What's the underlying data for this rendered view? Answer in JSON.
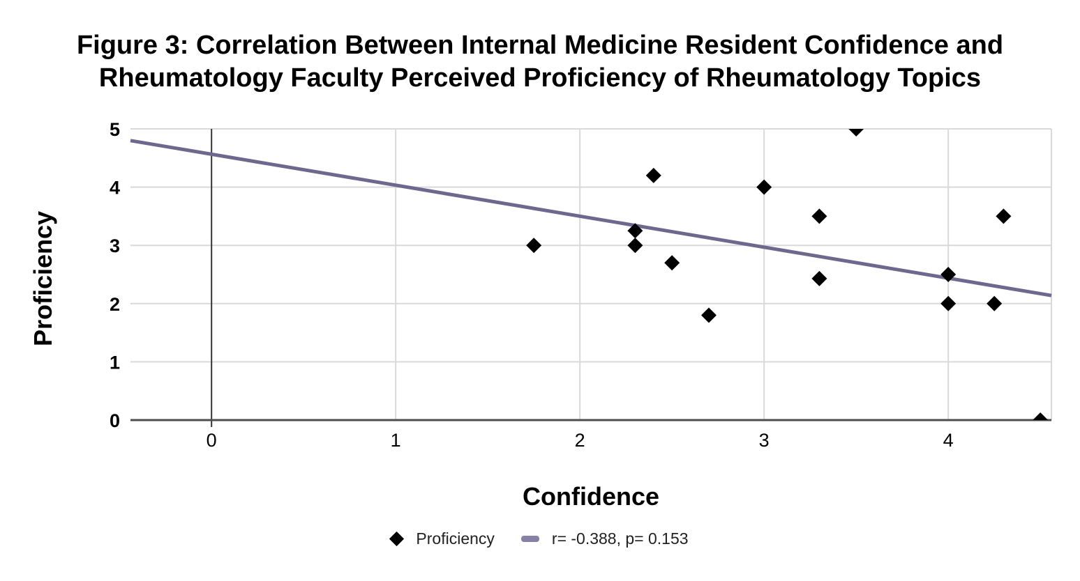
{
  "chart_data": {
    "type": "scatter",
    "title": "Figure 3: Correlation Between Internal Medicine Resident Confidence and Rheumatology Faculty Perceived Proficiency of Rheumatology Topics",
    "title_lines": [
      "Figure 3: Correlation Between Internal Medicine Resident Confidence and",
      "Rheumatology Faculty Perceived Proficiency of Rheumatology Topics"
    ],
    "xlabel": "Confidence",
    "ylabel": "Proficiency",
    "xlim": [
      -0.44,
      4.56
    ],
    "ylim": [
      0,
      5
    ],
    "x_ticks": [
      0,
      1,
      2,
      3,
      4
    ],
    "y_ticks": [
      0,
      1,
      2,
      3,
      4,
      5
    ],
    "grid": true,
    "legend_position": "bottom",
    "series": [
      {
        "name": "Proficiency",
        "marker": "diamond",
        "color": "#000000",
        "points": [
          [
            1.75,
            3.0
          ],
          [
            2.3,
            3.25
          ],
          [
            2.3,
            3.0
          ],
          [
            2.4,
            4.2
          ],
          [
            2.5,
            2.7
          ],
          [
            2.7,
            1.8
          ],
          [
            3.0,
            4.0
          ],
          [
            3.3,
            3.5
          ],
          [
            3.3,
            2.43
          ],
          [
            3.5,
            5.0
          ],
          [
            4.0,
            2.5
          ],
          [
            4.0,
            2.0
          ],
          [
            4.25,
            2.0
          ],
          [
            4.3,
            3.5
          ],
          [
            4.5,
            0.0
          ]
        ]
      }
    ],
    "trendline": {
      "label": "r= -0.388, p= 0.153",
      "slope": -0.532,
      "intercept": 4.565,
      "color": "#6E678F"
    }
  },
  "legend": {
    "series_label": "Proficiency",
    "trendline_label": "r= -0.388, p= 0.153"
  },
  "colors": {
    "background": "#FFFFFF",
    "grid": "#D9D9D9",
    "axis": "#4D4D4D",
    "zero_line": "#333333",
    "point": "#000000",
    "trend": "#6E678F",
    "legend_swatch": "#8781A8",
    "text": "#000000"
  }
}
